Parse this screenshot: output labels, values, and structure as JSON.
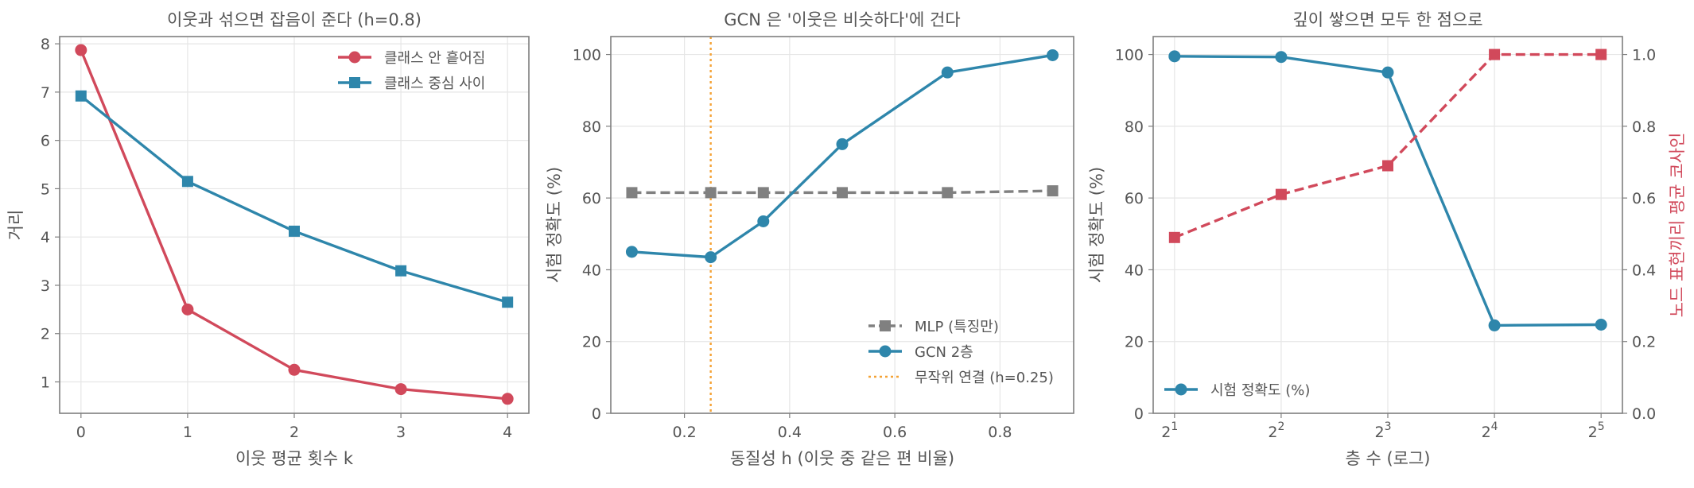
{
  "colors": {
    "red": "#d1495b",
    "blue": "#2e86ab",
    "gray": "#808080",
    "orange": "#f4a236"
  },
  "chart_data": [
    {
      "type": "line",
      "title": "이웃과 섞으면 잡음이 준다 (h=0.8)",
      "xlabel": "이웃 평균 횟수 k",
      "ylabel": "거리",
      "x": [
        0,
        1,
        2,
        3,
        4
      ],
      "xlim": [
        -0.2,
        4.2
      ],
      "ylim": [
        0.35,
        8.15
      ],
      "xticks": [
        0,
        1,
        2,
        3,
        4
      ],
      "yticks": [
        1,
        2,
        3,
        4,
        5,
        6,
        7,
        8
      ],
      "legend_position": "top-right",
      "series": [
        {
          "name": "클래스 안 흩어짐",
          "values": [
            7.87,
            2.5,
            1.25,
            0.85,
            0.65
          ],
          "color": "#d1495b",
          "marker": "circle",
          "dash": "solid"
        },
        {
          "name": "클래스 중심 사이",
          "values": [
            6.92,
            5.15,
            4.12,
            3.3,
            2.65
          ],
          "color": "#2e86ab",
          "marker": "square",
          "dash": "solid"
        }
      ],
      "grid": true
    },
    {
      "type": "line",
      "title": "GCN 은 '이웃은 비슷하다'에 건다",
      "xlabel": "동질성 h (이웃 중 같은 편 비율)",
      "ylabel": "시험 정확도 (%)",
      "xlim": [
        0.06,
        0.94
      ],
      "ylim": [
        0,
        105
      ],
      "xticks": [
        0.2,
        0.4,
        0.6,
        0.8
      ],
      "yticks": [
        0,
        20,
        40,
        60,
        80,
        100
      ],
      "legend_position": "bottom-right",
      "series": [
        {
          "name": "MLP (특징만)",
          "x": [
            0.1,
            0.25,
            0.35,
            0.5,
            0.7,
            0.9
          ],
          "values": [
            61.5,
            61.5,
            61.5,
            61.5,
            61.5,
            62.0
          ],
          "color": "#808080",
          "marker": "square",
          "dash": "dashed"
        },
        {
          "name": "GCN 2층",
          "x": [
            0.1,
            0.25,
            0.35,
            0.5,
            0.7,
            0.9
          ],
          "values": [
            45.0,
            43.5,
            53.5,
            75.0,
            95.0,
            99.8
          ],
          "color": "#2e86ab",
          "marker": "circle",
          "dash": "solid"
        }
      ],
      "vline": {
        "name": "무작위 연결 (h=0.25)",
        "x": 0.25,
        "color": "#f4a236"
      },
      "grid": true
    },
    {
      "type": "line",
      "title": "깊이 쌓으면 모두 한 점으로",
      "xlabel": "층 수 (로그)",
      "ylabel": "시험 정확도 (%)",
      "ylabel_right": "노드 표현끼리 평균 코사인",
      "x": [
        2,
        4,
        8,
        16,
        32
      ],
      "x_scale": "log2",
      "xticks": [
        "2^1",
        "2^2",
        "2^3",
        "2^4",
        "2^5"
      ],
      "ylim": [
        0,
        105
      ],
      "yticks": [
        0,
        20,
        40,
        60,
        80,
        100
      ],
      "ylim_right": [
        0,
        1.05
      ],
      "yticks_right": [
        "0.0",
        "0.2",
        "0.4",
        "0.6",
        "0.8",
        "1.0"
      ],
      "legend_position": "bottom-left",
      "series": [
        {
          "name": "시험 정확도 (%)",
          "values": [
            99.5,
            99.3,
            95.0,
            24.5,
            24.7
          ],
          "axis": "left",
          "color": "#2e86ab",
          "marker": "circle",
          "dash": "solid"
        },
        {
          "values": [
            0.49,
            0.61,
            0.69,
            1.0,
            1.0
          ],
          "axis": "right",
          "color": "#d1495b",
          "marker": "square",
          "dash": "dashed"
        }
      ],
      "grid": true
    }
  ]
}
